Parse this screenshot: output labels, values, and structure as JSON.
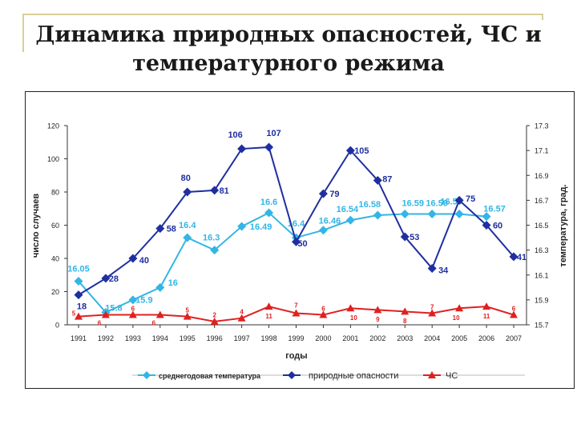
{
  "slide": {
    "title_line1": "Динамика природных опасностей, ЧС и",
    "title_line2": "температурного режима"
  },
  "chart_data": {
    "type": "line",
    "xlabel": "годы",
    "ylabel_left": "число случаев",
    "ylabel_right": "температура, град.",
    "y_left_range": [
      0,
      120
    ],
    "y_left_ticks": [
      0,
      20,
      40,
      60,
      80,
      100,
      120
    ],
    "y_right_range": [
      15.7,
      17.3
    ],
    "y_right_ticks": [
      "15.7",
      "15.9",
      "16.1",
      "16.3",
      "16.5",
      "16.7",
      "16.9",
      "17.1",
      "17.3"
    ],
    "legend_position": "bottom",
    "categories": [
      "1991",
      "1992",
      "1993",
      "1994",
      "1995",
      "1996",
      "1997",
      "1998",
      "1999",
      "2000",
      "2001",
      "2002",
      "2003",
      "2004",
      "2005",
      "2006",
      "2007"
    ],
    "series": [
      {
        "name": "среднегодовая температура",
        "axis": "right",
        "color": "#33b5e5",
        "marker": "diamond",
        "values": [
          16.05,
          15.8,
          15.9,
          16.0,
          16.4,
          16.3,
          16.49,
          16.6,
          16.4,
          16.46,
          16.54,
          16.58,
          16.59,
          16.59,
          16.59,
          16.57,
          null
        ],
        "labels": [
          "16.05",
          "15.8",
          "15.9",
          "16",
          "16.4",
          "16.3",
          "16.49",
          "16.6",
          "16.4",
          "16.46",
          "16.54",
          "16.58",
          "16.59",
          "16.59",
          "16.59",
          "16.57",
          ""
        ]
      },
      {
        "name": "природные опасности",
        "axis": "left",
        "color": "#1f2fa0",
        "marker": "diamond",
        "values": [
          18,
          28,
          40,
          58,
          80,
          81,
          106,
          107,
          50,
          79,
          105,
          87,
          53,
          34,
          75,
          60,
          41
        ],
        "labels": [
          "18",
          "28",
          "40",
          "58",
          "80",
          "81",
          "106",
          "107",
          "50",
          "79",
          "105",
          "87",
          "53",
          "34",
          "75",
          "60",
          "41"
        ]
      },
      {
        "name": "ЧС",
        "axis": "left",
        "color": "#e02020",
        "marker": "triangle",
        "values": [
          5,
          6,
          6,
          6,
          5,
          2,
          4,
          11,
          7,
          6,
          10,
          9,
          8,
          7,
          10,
          11,
          6
        ],
        "labels": [
          "5",
          "6",
          "6",
          "6",
          "5",
          "2",
          "4",
          "11",
          "7",
          "6",
          "10",
          "9",
          "8",
          "7",
          "10",
          "11",
          "6"
        ]
      }
    ]
  }
}
